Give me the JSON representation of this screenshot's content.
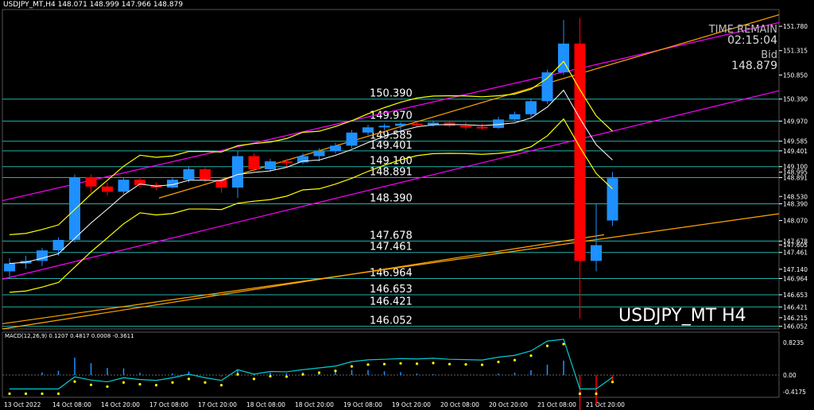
{
  "header": {
    "symbol_info": "USDJPY_MT,H4",
    "ohlc": "148.071 148.999 147.966 148.879"
  },
  "overlay": {
    "time_label": "TIME REMAIN",
    "time_value": "02:15:04",
    "bid_label": "Bid",
    "bid_value": "148.879"
  },
  "watermark": "USDJPY_MT H4",
  "colors": {
    "background": "#000000",
    "bull": "#1e90ff",
    "bear": "#ff0000",
    "level_line": "#20b2aa",
    "macd_line": "#00ced1",
    "signal_dots": "#ffff00",
    "axis_text": "#ffffff"
  },
  "chart_data": {
    "type": "candlestick",
    "price_axis_ticks": [
      "151.780",
      "151.315",
      "150.850",
      "150.390",
      "149.970",
      "149.585",
      "149.401",
      "149.100",
      "148.995",
      "148.891",
      "148.530",
      "148.390",
      "148.070",
      "147.678",
      "147.605",
      "147.461",
      "147.140",
      "146.964",
      "146.653",
      "146.421",
      "146.215",
      "146.052"
    ],
    "time_axis_ticks": [
      "13 Oct 2022",
      "14 Oct 08:00",
      "14 Oct 20:00",
      "17 Oct 08:00",
      "17 Oct 20:00",
      "18 Oct 08:00",
      "18 Oct 20:00",
      "19 Oct 08:00",
      "19 Oct 20:00",
      "20 Oct 08:00",
      "20 Oct 20:00",
      "21 Oct 08:00",
      "21 Oct 20:00"
    ],
    "levels": [
      "150.390",
      "149.970",
      "149.585",
      "149.401",
      "149.100",
      "148.891",
      "148.390",
      "147.678",
      "147.461",
      "146.964",
      "146.653",
      "146.421",
      "146.052"
    ],
    "ylim": [
      146.0,
      152.1
    ],
    "candles": [
      {
        "o": 147.1,
        "h": 147.35,
        "l": 147.0,
        "c": 147.25
      },
      {
        "o": 147.25,
        "h": 147.4,
        "l": 147.15,
        "c": 147.3
      },
      {
        "o": 147.3,
        "h": 147.55,
        "l": 147.2,
        "c": 147.5
      },
      {
        "o": 147.5,
        "h": 147.75,
        "l": 147.4,
        "c": 147.7
      },
      {
        "o": 147.7,
        "h": 148.95,
        "l": 147.65,
        "c": 148.9
      },
      {
        "o": 148.9,
        "h": 148.95,
        "l": 148.6,
        "c": 148.72
      },
      {
        "o": 148.72,
        "h": 148.8,
        "l": 148.55,
        "c": 148.62
      },
      {
        "o": 148.62,
        "h": 148.9,
        "l": 148.58,
        "c": 148.85
      },
      {
        "o": 148.85,
        "h": 148.9,
        "l": 148.7,
        "c": 148.75
      },
      {
        "o": 148.75,
        "h": 148.8,
        "l": 148.65,
        "c": 148.7
      },
      {
        "o": 148.7,
        "h": 148.9,
        "l": 148.68,
        "c": 148.85
      },
      {
        "o": 148.85,
        "h": 149.1,
        "l": 148.8,
        "c": 149.05
      },
      {
        "o": 149.05,
        "h": 149.1,
        "l": 148.8,
        "c": 148.85
      },
      {
        "o": 148.85,
        "h": 148.9,
        "l": 148.6,
        "c": 148.7
      },
      {
        "o": 148.7,
        "h": 149.4,
        "l": 148.5,
        "c": 149.3
      },
      {
        "o": 149.3,
        "h": 149.35,
        "l": 149.0,
        "c": 149.05
      },
      {
        "o": 149.05,
        "h": 149.25,
        "l": 149.0,
        "c": 149.2
      },
      {
        "o": 149.2,
        "h": 149.25,
        "l": 149.1,
        "c": 149.18
      },
      {
        "o": 149.18,
        "h": 149.35,
        "l": 149.15,
        "c": 149.3
      },
      {
        "o": 149.3,
        "h": 149.45,
        "l": 149.2,
        "c": 149.4
      },
      {
        "o": 149.4,
        "h": 149.55,
        "l": 149.35,
        "c": 149.5
      },
      {
        "o": 149.5,
        "h": 149.8,
        "l": 149.45,
        "c": 149.75
      },
      {
        "o": 149.75,
        "h": 149.9,
        "l": 149.7,
        "c": 149.85
      },
      {
        "o": 149.85,
        "h": 149.92,
        "l": 149.8,
        "c": 149.88
      },
      {
        "o": 149.88,
        "h": 149.95,
        "l": 149.8,
        "c": 149.92
      },
      {
        "o": 149.92,
        "h": 149.96,
        "l": 149.88,
        "c": 149.9
      },
      {
        "o": 149.9,
        "h": 149.98,
        "l": 149.86,
        "c": 149.94
      },
      {
        "o": 149.94,
        "h": 149.97,
        "l": 149.85,
        "c": 149.88
      },
      {
        "o": 149.88,
        "h": 149.95,
        "l": 149.8,
        "c": 149.86
      },
      {
        "o": 149.86,
        "h": 149.92,
        "l": 149.8,
        "c": 149.84
      },
      {
        "o": 149.84,
        "h": 150.05,
        "l": 149.82,
        "c": 150.0
      },
      {
        "o": 150.0,
        "h": 150.15,
        "l": 149.98,
        "c": 150.1
      },
      {
        "o": 150.1,
        "h": 150.4,
        "l": 150.05,
        "c": 150.35
      },
      {
        "o": 150.35,
        "h": 150.95,
        "l": 150.3,
        "c": 150.9
      },
      {
        "o": 150.9,
        "h": 151.9,
        "l": 150.85,
        "c": 151.45
      },
      {
        "o": 151.45,
        "h": 151.94,
        "l": 146.2,
        "c": 147.3
      },
      {
        "o": 147.3,
        "h": 148.4,
        "l": 147.1,
        "c": 147.6
      },
      {
        "o": 148.071,
        "h": 148.999,
        "l": 147.966,
        "c": 148.879
      }
    ],
    "indicator": {
      "name": "MACD(12,26,9)",
      "values": [
        "0.1207",
        "0.4817",
        "0.0008",
        "-0.3611"
      ],
      "axis_ticks": [
        "0.8235",
        "0.00",
        "-0.4175"
      ]
    }
  }
}
